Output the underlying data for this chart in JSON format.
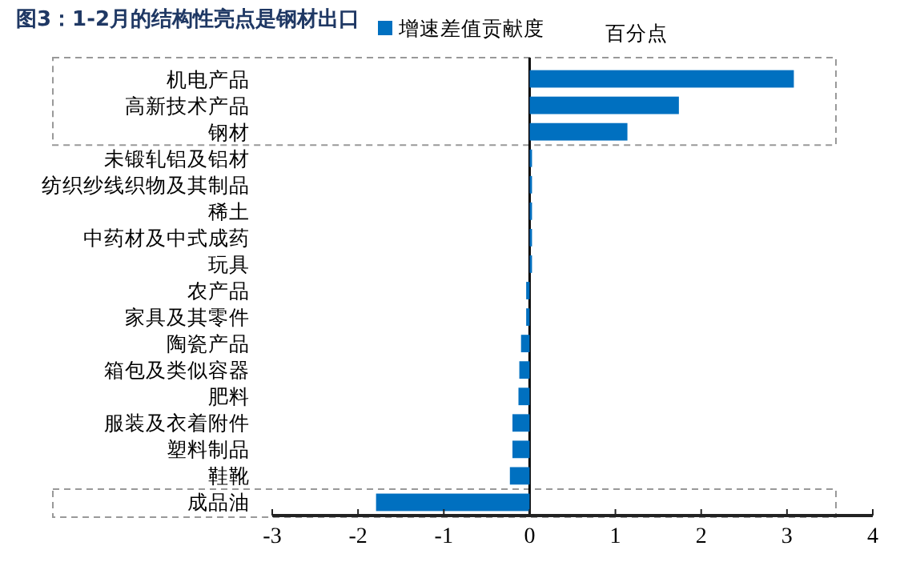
{
  "chart_data": {
    "type": "bar",
    "orientation": "horizontal",
    "title": "图3：1-2月的结构性亮点是钢材出口",
    "categories": [
      "机电产品",
      "高新技术产品",
      "钢材",
      "未锻轧铝及铝材",
      "纺织纱线织物及其制品",
      "稀土",
      "中药材及中式成药",
      "玩具",
      "农产品",
      "家具及其零件",
      "陶瓷产品",
      "箱包及类似容器",
      "肥料",
      "服装及衣着附件",
      "塑料制品",
      "鞋靴",
      "成品油"
    ],
    "series": [
      {
        "name": "增速差值贡献度",
        "color": "#0070c0",
        "values": [
          3.08,
          1.74,
          1.14,
          0.01,
          0.01,
          0,
          0,
          0,
          -0.04,
          -0.04,
          -0.1,
          -0.12,
          -0.13,
          -0.2,
          -0.2,
          -0.23,
          -1.79
        ]
      }
    ],
    "xlim": [
      -3,
      4
    ],
    "xticks": [
      -3,
      -2,
      -1,
      0,
      1,
      2,
      3,
      4
    ],
    "legend": "top",
    "annotations": [
      "百分点"
    ]
  }
}
